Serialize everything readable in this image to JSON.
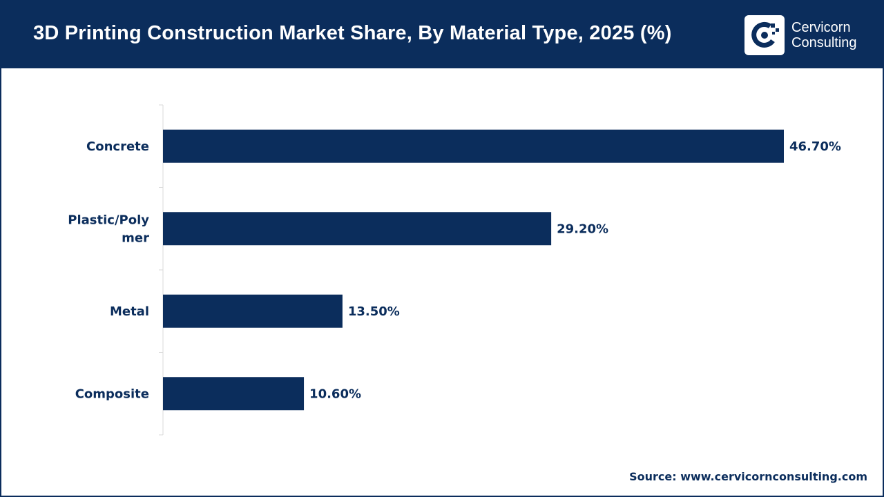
{
  "header": {
    "title": "3D Printing Construction Market Share, By Material Type, 2025 (%)"
  },
  "logo": {
    "icon": "cervicorn-logo-icon",
    "line1": "Cervicorn",
    "line2": "Consulting"
  },
  "colors": {
    "header_bg": "#0b2d5c",
    "bar": "#0b2d5c",
    "text": "#0b2d5c",
    "axis": "#d9d9d9"
  },
  "chart_data": {
    "type": "bar",
    "orientation": "horizontal",
    "title": "3D Printing Construction Market Share, By Material Type, 2025 (%)",
    "categories": [
      "Concrete",
      "Plastic/Polymer",
      "Metal",
      "Composite"
    ],
    "category_labels": [
      [
        "Concrete"
      ],
      [
        "Plastic/Poly",
        "mer"
      ],
      [
        "Metal"
      ],
      [
        "Composite"
      ]
    ],
    "values": [
      46.7,
      29.2,
      13.5,
      10.6
    ],
    "value_labels": [
      "46.70%",
      "29.20%",
      "13.50%",
      "10.60%"
    ],
    "xlabel": "",
    "ylabel": "",
    "xlim": [
      0,
      46.7
    ],
    "grid": false,
    "legend": "none"
  },
  "footer": {
    "source": "Source: www.cervicornconsulting.com"
  }
}
